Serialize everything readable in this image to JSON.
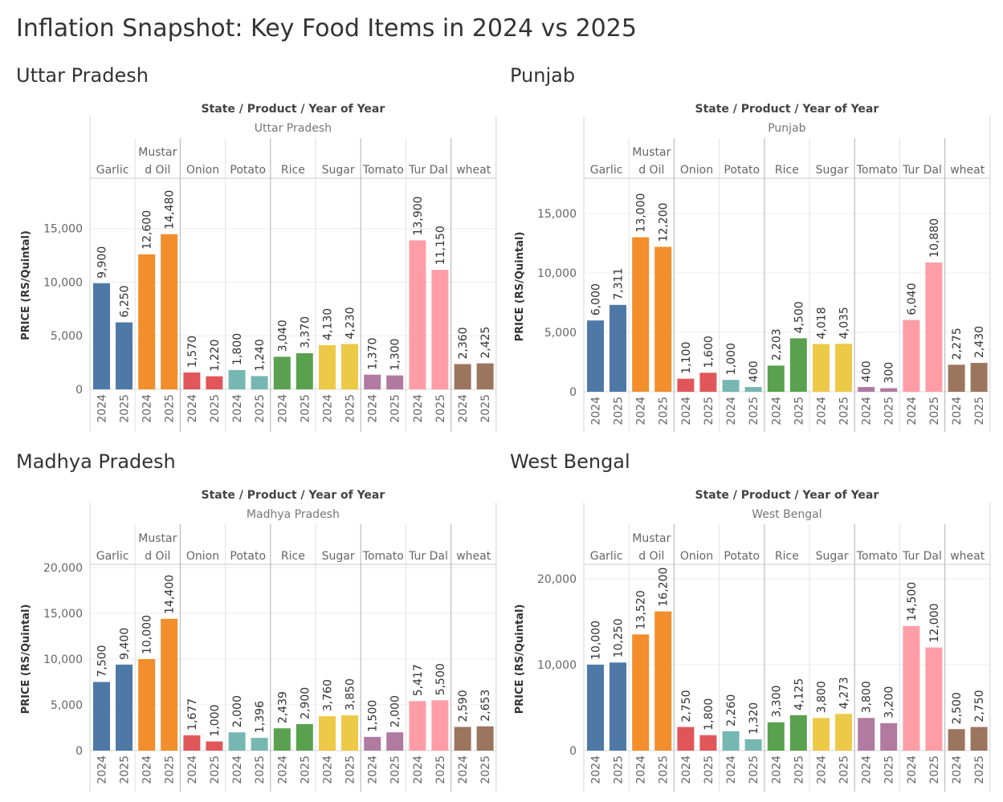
{
  "title": "Inflation Snapshot: Key Food Items in 2024 vs 2025",
  "colors": {
    "Garlic": "#4e79a7",
    "Mustard Oil": "#f28e2b",
    "Onion": "#e15759",
    "Potato": "#76b7b2",
    "Rice": "#59a14f",
    "Sugar": "#edc948",
    "Tomato": "#b07aa1",
    "Tur Dal": "#ff9da7",
    "wheat": "#9c755f"
  },
  "chart_data": [
    {
      "type": "bar",
      "title": "Uttar Pradesh",
      "header": "State  /  Product  /  Year of Year",
      "state": "Uttar Pradesh",
      "products": [
        "Garlic",
        "Mustard Oil",
        "Onion",
        "Potato",
        "Rice",
        "Sugar",
        "Tomato",
        "Tur Dal",
        "wheat"
      ],
      "product_labels": [
        [
          "Garlic"
        ],
        [
          "Mustar",
          "d Oil"
        ],
        [
          "Onion"
        ],
        [
          "Potato"
        ],
        [
          "Rice"
        ],
        [
          "Sugar"
        ],
        [
          "Tomato"
        ],
        [
          "Tur Dal"
        ],
        [
          "wheat"
        ]
      ],
      "years": [
        "2024",
        "2025"
      ],
      "values": [
        [
          9900,
          6250
        ],
        [
          12600,
          14480
        ],
        [
          1570,
          1220
        ],
        [
          1800,
          1240
        ],
        [
          3040,
          3370
        ],
        [
          4130,
          4230
        ],
        [
          1370,
          1300
        ],
        [
          13900,
          11150
        ],
        [
          2360,
          2425
        ]
      ],
      "value_labels": [
        [
          "9,900",
          "6,250"
        ],
        [
          "12,600",
          "14,480"
        ],
        [
          "1,570",
          "1,220"
        ],
        [
          "1,800",
          "1,240"
        ],
        [
          "3,040",
          "3,370"
        ],
        [
          "4,130",
          "4,230"
        ],
        [
          "1,370",
          "1,300"
        ],
        [
          "13,900",
          "11,150"
        ],
        [
          "2,360",
          "2,425"
        ]
      ],
      "ylabel": "PRICE (RS/Quintal)",
      "ylim": [
        0,
        19400
      ],
      "yticks": [
        0,
        5000,
        10000,
        15000
      ],
      "ytick_labels": [
        "0",
        "5,000",
        "10,000",
        "15,000"
      ]
    },
    {
      "type": "bar",
      "title": "Punjab",
      "header": "State  /  Product  /  Year of Year",
      "state": "Punjab",
      "products": [
        "Garlic",
        "Mustard Oil",
        "Onion",
        "Potato",
        "Rice",
        "Sugar",
        "Tomato",
        "Tur Dal",
        "wheat"
      ],
      "product_labels": [
        [
          "Garlic"
        ],
        [
          "Mustar",
          "d Oil"
        ],
        [
          "Onion"
        ],
        [
          "Potato"
        ],
        [
          "Rice"
        ],
        [
          "Sugar"
        ],
        [
          "Tomato"
        ],
        [
          "Tur Dal"
        ],
        [
          "wheat"
        ]
      ],
      "years": [
        "2024",
        "2025"
      ],
      "values": [
        [
          6000,
          7311
        ],
        [
          13000,
          12200
        ],
        [
          1100,
          1600
        ],
        [
          1000,
          400
        ],
        [
          2203,
          4500
        ],
        [
          4018,
          4035
        ],
        [
          400,
          300
        ],
        [
          6040,
          10880
        ],
        [
          2275,
          2430
        ]
      ],
      "value_labels": [
        [
          "6,000",
          "7,311"
        ],
        [
          "13,000",
          "12,200"
        ],
        [
          "1,100",
          "1,600"
        ],
        [
          "1,000",
          "400"
        ],
        [
          "2,203",
          "4,500"
        ],
        [
          "4,018",
          "4,035"
        ],
        [
          "400",
          "300"
        ],
        [
          "6,040",
          "10,880"
        ],
        [
          "2,275",
          "2,430"
        ]
      ],
      "ylabel": "PRICE (RS/Quintal)",
      "ylim": [
        0,
        17700
      ],
      "yticks": [
        0,
        5000,
        10000,
        15000
      ],
      "ytick_labels": [
        "0",
        "5,000",
        "10,000",
        "15,000"
      ]
    },
    {
      "type": "bar",
      "title": "Madhya Pradesh",
      "header": "State  /  Product  /  Year of Year",
      "state": "Madhya Pradesh",
      "products": [
        "Garlic",
        "Mustard Oil",
        "Onion",
        "Potato",
        "Rice",
        "Sugar",
        "Tomato",
        "Tur Dal",
        "wheat"
      ],
      "product_labels": [
        [
          "Garlic"
        ],
        [
          "Mustar",
          "d Oil"
        ],
        [
          "Onion"
        ],
        [
          "Potato"
        ],
        [
          "Rice"
        ],
        [
          "Sugar"
        ],
        [
          "Tomato"
        ],
        [
          "Tur Dal"
        ],
        [
          "wheat"
        ]
      ],
      "years": [
        "2024",
        "2025"
      ],
      "values": [
        [
          7500,
          9400
        ],
        [
          10000,
          14400
        ],
        [
          1677,
          1000
        ],
        [
          2000,
          1396
        ],
        [
          2439,
          2900
        ],
        [
          3760,
          3850
        ],
        [
          1500,
          2000
        ],
        [
          5417,
          5500
        ],
        [
          2590,
          2653
        ]
      ],
      "value_labels": [
        [
          "7,500",
          "9,400"
        ],
        [
          "10,000",
          "14,400"
        ],
        [
          "1,677",
          "1,000"
        ],
        [
          "2,000",
          "1,396"
        ],
        [
          "2,439",
          "2,900"
        ],
        [
          "3,760",
          "3,850"
        ],
        [
          "1,500",
          "2,000"
        ],
        [
          "5,417",
          "5,500"
        ],
        [
          "2,590",
          "2,653"
        ]
      ],
      "ylabel": "PRICE (RS/Quintal)",
      "ylim": [
        0,
        20000
      ],
      "yticks": [
        0,
        5000,
        10000,
        15000,
        20000
      ],
      "ytick_labels": [
        "0",
        "5,000",
        "10,000",
        "15,000",
        "20,000"
      ]
    },
    {
      "type": "bar",
      "title": "West Bengal",
      "header": "State  /  Product  /  Year of Year",
      "state": "West Bengal",
      "products": [
        "Garlic",
        "Mustard Oil",
        "Onion",
        "Potato",
        "Rice",
        "Sugar",
        "Tomato",
        "Tur Dal",
        "wheat"
      ],
      "product_labels": [
        [
          "Garlic"
        ],
        [
          "Mustar",
          "d Oil"
        ],
        [
          "Onion"
        ],
        [
          "Potato"
        ],
        [
          "Rice"
        ],
        [
          "Sugar"
        ],
        [
          "Tomato"
        ],
        [
          "Tur Dal"
        ],
        [
          "wheat"
        ]
      ],
      "years": [
        "2024",
        "2025"
      ],
      "values": [
        [
          10000,
          10250
        ],
        [
          13520,
          16200
        ],
        [
          2750,
          1800
        ],
        [
          2260,
          1320
        ],
        [
          3300,
          4125
        ],
        [
          3800,
          4273
        ],
        [
          3800,
          3200
        ],
        [
          14500,
          12000
        ],
        [
          2500,
          2750
        ]
      ],
      "value_labels": [
        [
          "10,000",
          "10,250"
        ],
        [
          "13,520",
          "16,200"
        ],
        [
          "2,750",
          "1,800"
        ],
        [
          "2,260",
          "1,320"
        ],
        [
          "3,300",
          "4,125"
        ],
        [
          "3,800",
          "4,273"
        ],
        [
          "3,800",
          "3,200"
        ],
        [
          "14,500",
          "12,000"
        ],
        [
          "2,500",
          "2,750"
        ]
      ],
      "ylabel": "PRICE (RS/Quintal)",
      "ylim": [
        0,
        21300
      ],
      "yticks": [
        0,
        10000,
        20000
      ],
      "ytick_labels": [
        "0",
        "10,000",
        "20,000"
      ]
    }
  ]
}
